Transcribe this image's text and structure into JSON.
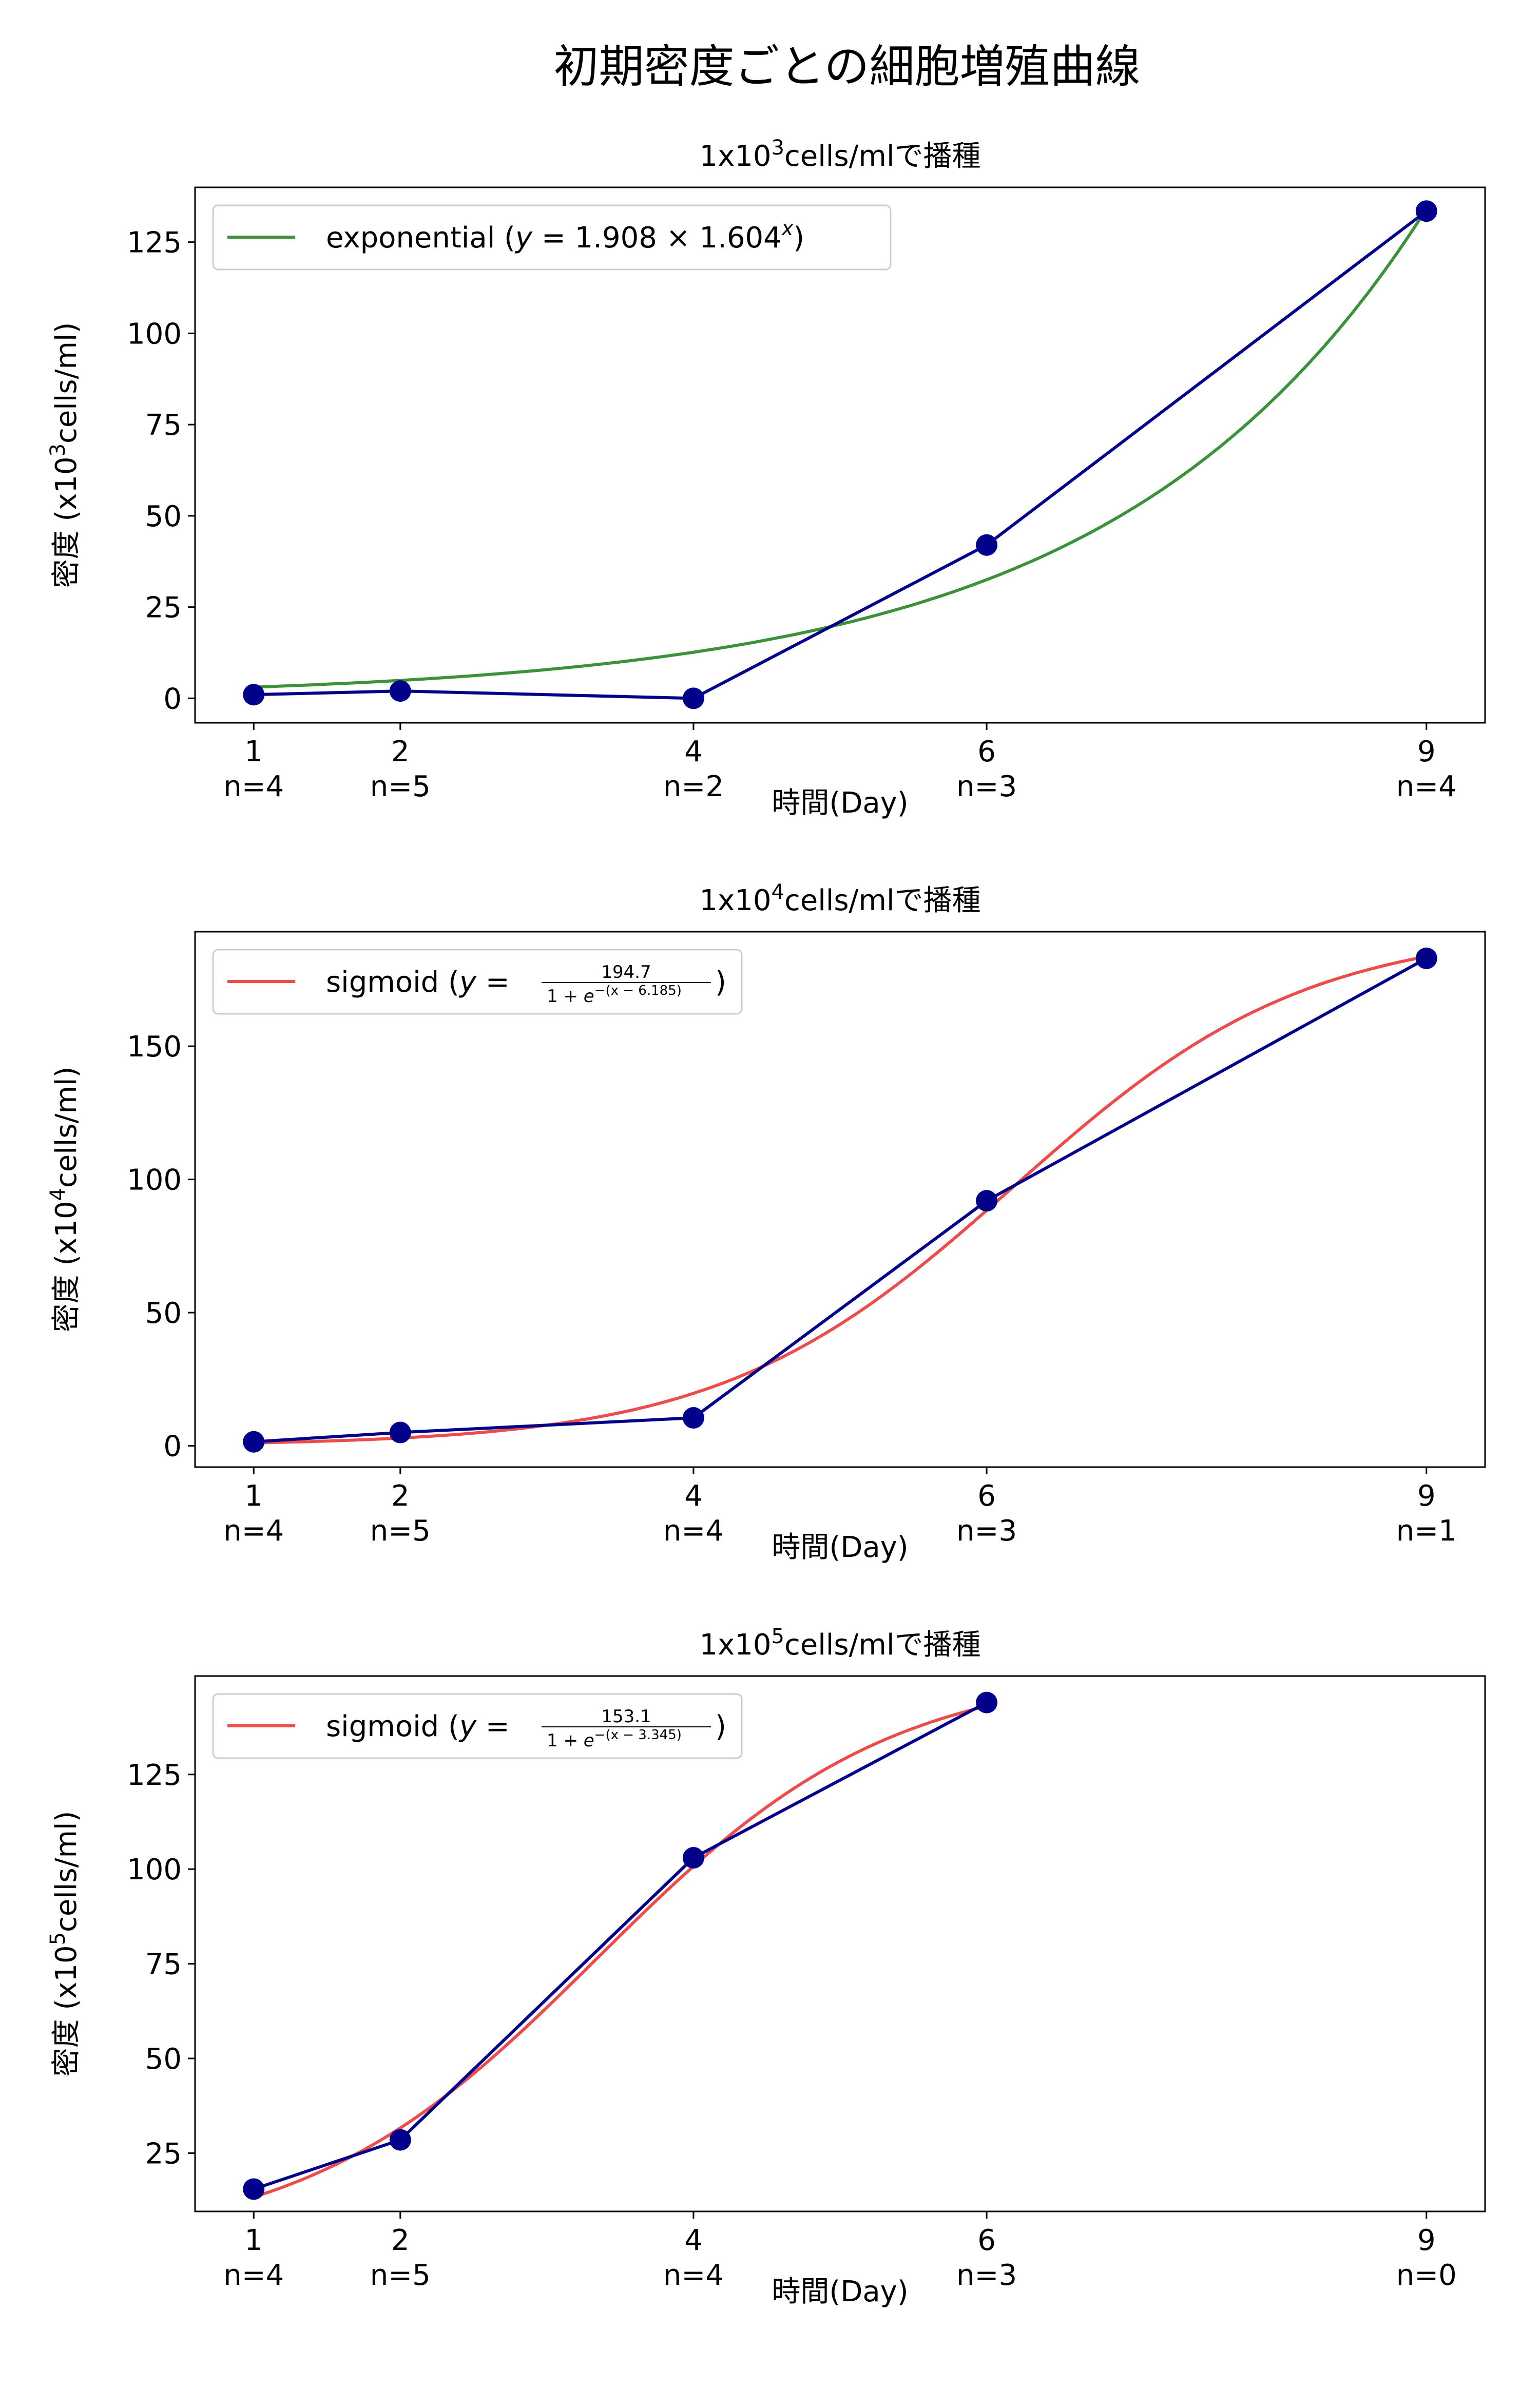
{
  "figure": {
    "title": "初期密度ごとの細胞増殖曲線",
    "colors": {
      "data": "#00008b",
      "exponential": "#3b923b",
      "sigmoid": "#ee4b4b",
      "frame": "#000000"
    }
  },
  "chart_data": [
    {
      "type": "line",
      "title_prefix": "1x10",
      "title_exp": "3",
      "title_suffix": "cells/mlで播種",
      "xlabel": "時間(Day)",
      "ylabel_prefix": "密度 (x10",
      "ylabel_exp": "3",
      "ylabel_suffix": "cells/ml)",
      "x": [
        1,
        2,
        4,
        6,
        9
      ],
      "xtick_labels": [
        "1",
        "2",
        "4",
        "6",
        "9"
      ],
      "n_labels": [
        "n=4",
        "n=5",
        "n=2",
        "n=3",
        "n=4"
      ],
      "xlim": [
        0.6,
        9.4
      ],
      "ylim": [
        -6.7,
        140
      ],
      "yticks": [
        0,
        25,
        50,
        75,
        100,
        125
      ],
      "series": [
        {
          "kind": "data",
          "x": [
            1,
            2,
            4,
            6,
            9
          ],
          "values": [
            1.0,
            2.0,
            0.0,
            42.0,
            133.5
          ]
        },
        {
          "kind": "fit",
          "model": "exponential",
          "a": 1.908,
          "b": 1.604,
          "x_range": [
            1,
            9
          ]
        }
      ],
      "legend": {
        "placement": "top-left",
        "fit_name": "exponential",
        "a_label": "1.908",
        "b_label": "1.604"
      }
    },
    {
      "type": "line",
      "title_prefix": "1x10",
      "title_exp": "4",
      "title_suffix": "cells/mlで播種",
      "xlabel": "時間(Day)",
      "ylabel_prefix": "密度 (x10",
      "ylabel_exp": "4",
      "ylabel_suffix": "cells/ml)",
      "x": [
        1,
        2,
        4,
        6,
        9
      ],
      "xtick_labels": [
        "1",
        "2",
        "4",
        "6",
        "9"
      ],
      "n_labels": [
        "n=4",
        "n=5",
        "n=4",
        "n=3",
        "n=1"
      ],
      "xlim": [
        0.6,
        9.4
      ],
      "ylim": [
        -8,
        193
      ],
      "yticks": [
        0,
        50,
        100,
        150
      ],
      "series": [
        {
          "kind": "data",
          "x": [
            1,
            2,
            4,
            6,
            9
          ],
          "values": [
            1.5,
            5.0,
            10.5,
            92.0,
            183.0
          ]
        },
        {
          "kind": "fit",
          "model": "sigmoid",
          "L": 194.7,
          "x0": 6.185,
          "x_range": [
            1,
            9
          ]
        }
      ],
      "legend": {
        "placement": "top-left",
        "fit_name": "sigmoid",
        "numerator": "194.7",
        "exp_label": "−(x − 6.185)"
      }
    },
    {
      "type": "line",
      "title_prefix": "1x10",
      "title_exp": "5",
      "title_suffix": "cells/mlで播種",
      "xlabel": "時間(Day)",
      "ylabel_prefix": "密度 (x10",
      "ylabel_exp": "5",
      "ylabel_suffix": "cells/ml)",
      "x": [
        1,
        2,
        4,
        6,
        9
      ],
      "xtick_labels": [
        "1",
        "2",
        "4",
        "6",
        "9"
      ],
      "n_labels": [
        "n=4",
        "n=5",
        "n=4",
        "n=3",
        "n=0"
      ],
      "xlim": [
        0.6,
        9.4
      ],
      "ylim": [
        9.6,
        151
      ],
      "yticks": [
        25,
        50,
        75,
        100,
        125
      ],
      "series": [
        {
          "kind": "data",
          "x": [
            1,
            2,
            4,
            6
          ],
          "values": [
            15.5,
            28.5,
            103.0,
            144.0
          ]
        },
        {
          "kind": "fit",
          "model": "sigmoid",
          "L": 153.1,
          "x0": 3.345,
          "x_range": [
            1,
            6
          ]
        }
      ],
      "legend": {
        "placement": "top-left",
        "fit_name": "sigmoid",
        "numerator": "153.1",
        "exp_label": "−(x − 3.345)"
      }
    }
  ]
}
